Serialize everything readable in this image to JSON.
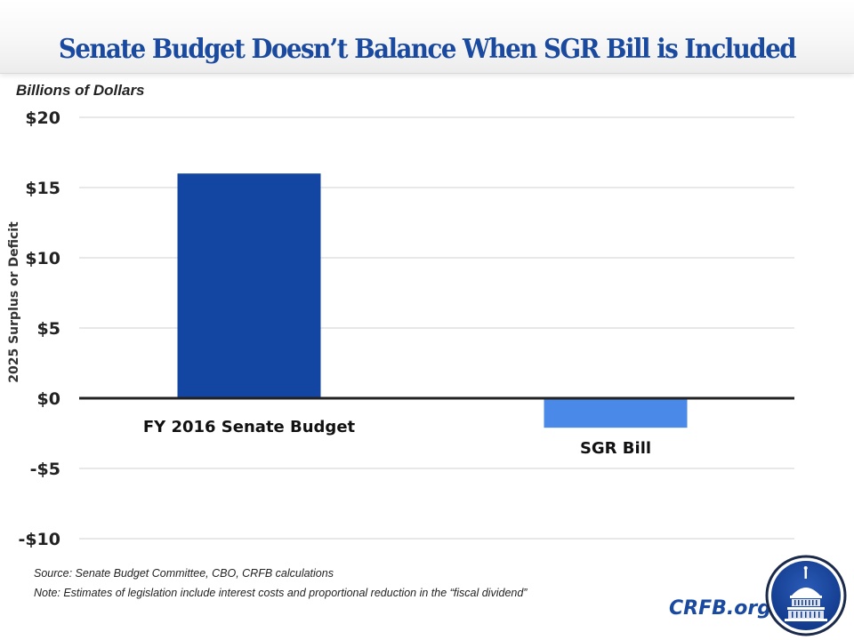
{
  "header": {
    "title": "Senate Budget Doesn’t Balance When SGR Bill is Included"
  },
  "chart_data": {
    "type": "bar",
    "title": "Senate Budget Doesn’t Balance When SGR Bill is Included",
    "units_label": "Billions of Dollars",
    "xlabel": "",
    "ylabel": "2025 Surplus or Deficit",
    "categories": [
      "FY 2016 Senate Budget",
      "SGR Bill"
    ],
    "values": [
      16,
      -2.1
    ],
    "colors": [
      "#1346a2",
      "#4a89e8"
    ],
    "ylim": [
      -10,
      20
    ],
    "yticks": [
      20,
      15,
      10,
      5,
      0,
      -5,
      -10
    ],
    "ytick_labels": [
      "$20",
      "$15",
      "$10",
      "$5",
      "$0",
      "-$5",
      "-$10"
    ],
    "grid": true,
    "legend": "none"
  },
  "footer": {
    "source": "Source: Senate Budget Committee, CBO, CRFB calculations",
    "note": "Note: Estimates of legislation include interest costs and proportional reduction in the “fiscal dividend”",
    "brand": "CRFB.org",
    "logo_icon": "capitol-dome-icon"
  },
  "colors": {
    "title": "#1a4aa0",
    "brand": "#1a4aa0",
    "gridline": "#d9d9d9",
    "zero_line": "#222222"
  }
}
